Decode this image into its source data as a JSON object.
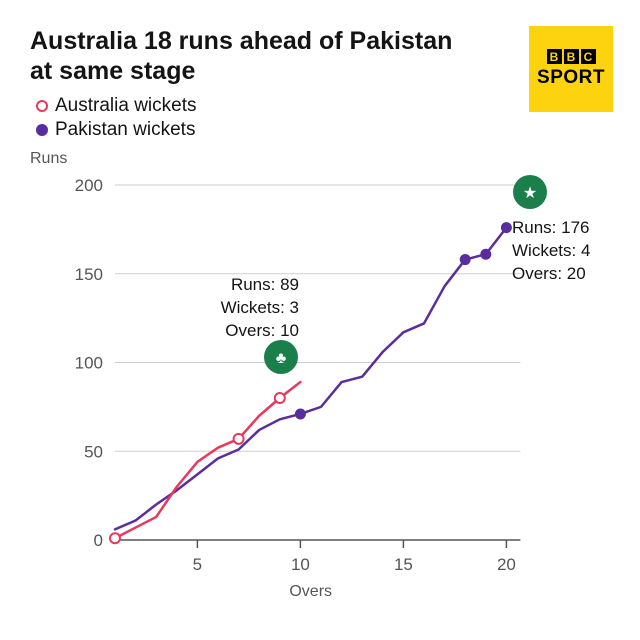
{
  "title": "Australia 18 runs ahead of Pakistan at same stage",
  "logo": {
    "bbc_letters": [
      "B",
      "B",
      "C"
    ],
    "sport": "SPORT"
  },
  "legend": [
    {
      "label": "Australia wickets",
      "color": "#e8385e",
      "style": "hollow"
    },
    {
      "label": "Pakistan wickets",
      "color": "#5a2d9e",
      "style": "filled"
    }
  ],
  "chart_data": {
    "type": "line",
    "title": "Australia 18 runs ahead of Pakistan at same stage",
    "xlabel": "Overs",
    "ylabel": "Runs",
    "xlim": [
      1,
      20
    ],
    "ylim": [
      0,
      200
    ],
    "xticks": [
      5,
      10,
      15,
      20
    ],
    "yticks": [
      0,
      50,
      100,
      150,
      200
    ],
    "series": [
      {
        "name": "Australia",
        "color": "#e8385e",
        "x": [
          1,
          2,
          3,
          4,
          5,
          6,
          7,
          8,
          9,
          10
        ],
        "y": [
          1,
          7,
          13,
          30,
          44,
          52,
          57,
          70,
          80,
          89
        ],
        "wickets": [
          {
            "over": 1,
            "runs": 1
          },
          {
            "over": 7,
            "runs": 57
          },
          {
            "over": 9,
            "runs": 80
          }
        ]
      },
      {
        "name": "Pakistan",
        "color": "#5a2d9e",
        "x": [
          1,
          2,
          3,
          4,
          5,
          6,
          7,
          8,
          9,
          10,
          11,
          12,
          13,
          14,
          15,
          16,
          17,
          18,
          19,
          20
        ],
        "y": [
          6,
          11,
          20,
          28,
          37,
          46,
          51,
          62,
          68,
          71,
          75,
          89,
          92,
          106,
          117,
          122,
          143,
          158,
          161,
          176
        ],
        "wickets": [
          {
            "over": 10,
            "runs": 71
          },
          {
            "over": 18,
            "runs": 158
          },
          {
            "over": 19,
            "runs": 161
          },
          {
            "over": 20,
            "runs": 176
          }
        ]
      }
    ],
    "annotations": [
      {
        "team": "Australia",
        "lines": [
          "Runs: 89",
          "Wickets: 3",
          "Overs: 10"
        ],
        "color": "#1b7f4c"
      },
      {
        "team": "Pakistan",
        "lines": [
          "Runs: 176",
          "Wickets: 4",
          "Overs: 20"
        ],
        "color": "#1b7f4c"
      }
    ]
  }
}
